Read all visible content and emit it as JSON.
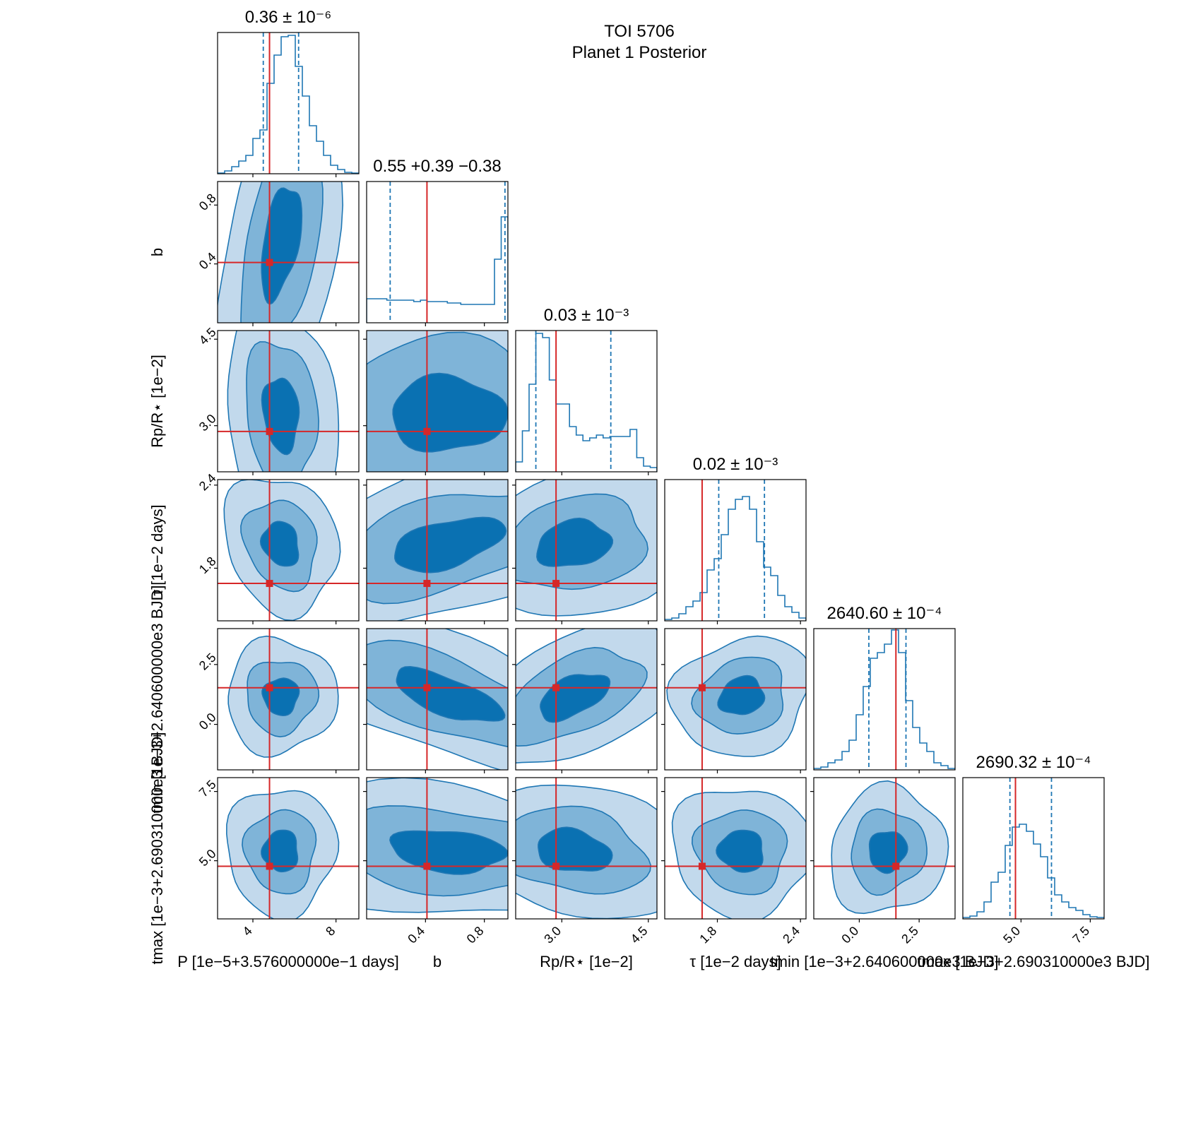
{
  "figure": {
    "title_line1": "TOI 5706",
    "title_line2": "Planet 1 Posterior"
  },
  "colors": {
    "fill_outer": "#c2d9ec",
    "fill_mid": "#7fb4d8",
    "fill_inner": "#0a71b2",
    "contour_line": "#1f77b4",
    "truth": "#d62728",
    "hist": "#1f77b4",
    "axes": "#000000"
  },
  "chart_data": {
    "type": "corner",
    "parameters": [
      {
        "key": "P",
        "title": "0.36 ± 10⁻⁶",
        "xlabel": "P [1e−5+3.576000000e−1  days]",
        "ylabel": "",
        "ticks": [
          "4",
          "8"
        ],
        "tick_values": [
          4,
          8
        ],
        "range": [
          2.3,
          9.1
        ],
        "truth": 4.8,
        "q_lo": 4.5,
        "q_hi": 6.2,
        "hist": [
          0.005,
          0.02,
          0.05,
          0.09,
          0.13,
          0.25,
          0.31,
          0.64,
          0.84,
          0.97,
          0.98,
          0.76,
          0.55,
          0.34,
          0.23,
          0.13,
          0.06,
          0.03,
          0.01,
          0.005
        ]
      },
      {
        "key": "b",
        "title": "0.55 +0.39 −0.38",
        "xlabel": "b",
        "ylabel": "b",
        "ticks": [
          "0.4",
          "0.8"
        ],
        "tick_values": [
          0.4,
          0.8
        ],
        "range": [
          0.0,
          0.96
        ],
        "truth": 0.41,
        "q_lo": 0.16,
        "q_hi": 0.94,
        "hist": [
          0.17,
          0.17,
          0.17,
          0.16,
          0.16,
          0.16,
          0.16,
          0.15,
          0.16,
          0.15,
          0.15,
          0.15,
          0.14,
          0.14,
          0.13,
          0.13,
          0.13,
          0.13,
          0.13,
          0.45,
          0.75
        ]
      },
      {
        "key": "Rp",
        "title": "0.03 ± 10⁻³",
        "xlabel": "Rp/R⋆ [1e−2]",
        "ylabel": "Rp/R⋆ [1e−2]",
        "ticks": [
          "3.0",
          "4.5"
        ],
        "tick_values": [
          3.0,
          4.5
        ],
        "range": [
          2.2,
          4.65
        ],
        "truth": 2.9,
        "q_lo": 2.55,
        "q_hi": 3.85,
        "hist": [
          0.07,
          0.29,
          0.62,
          0.98,
          0.95,
          0.65,
          0.48,
          0.48,
          0.32,
          0.26,
          0.22,
          0.24,
          0.26,
          0.24,
          0.25,
          0.25,
          0.25,
          0.3,
          0.1,
          0.04,
          0.03
        ]
      },
      {
        "key": "tau",
        "title": "0.02 ± 10⁻³",
        "xlabel": "τ [1e−2  days]",
        "ylabel": "τ [1e−2  days]",
        "ticks": [
          "1.8",
          "2.4"
        ],
        "tick_values": [
          1.8,
          2.4
        ],
        "range": [
          1.42,
          2.44
        ],
        "truth": 1.69,
        "q_lo": 1.81,
        "q_hi": 2.14,
        "hist": [
          0.01,
          0.02,
          0.05,
          0.1,
          0.14,
          0.2,
          0.36,
          0.44,
          0.61,
          0.79,
          0.86,
          0.88,
          0.79,
          0.56,
          0.38,
          0.32,
          0.18,
          0.1,
          0.06,
          0.02
        ]
      },
      {
        "key": "tmin",
        "title": "2640.60 ± 10⁻⁴",
        "xlabel": "tmin [1e−3+2.640600000e3  BJD]",
        "ylabel": "tmin [1e−3+2.640600000e3  BJD]",
        "ticks": [
          "0.0",
          "2.5"
        ],
        "tick_values": [
          0.0,
          2.5
        ],
        "range": [
          -1.9,
          4.0
        ],
        "truth": 1.53,
        "q_lo": 0.4,
        "q_hi": 1.95,
        "hist": [
          0.01,
          0.02,
          0.05,
          0.07,
          0.13,
          0.21,
          0.39,
          0.59,
          0.79,
          0.83,
          0.89,
          0.99,
          0.83,
          0.49,
          0.3,
          0.19,
          0.13,
          0.05,
          0.03,
          0.01
        ]
      },
      {
        "key": "tmax",
        "title": "2690.32 ± 10⁻⁴",
        "xlabel": "tmax [1e−3+2.690310000e3  BJD]",
        "ylabel": "tmax [1e−3+2.690310000e3  BJD]",
        "ticks": [
          "5.0",
          "7.5"
        ],
        "tick_values": [
          5.0,
          7.5
        ],
        "range": [
          2.9,
          8.0
        ],
        "truth": 4.8,
        "q_lo": 4.6,
        "q_hi": 6.1,
        "hist": [
          0.01,
          0.02,
          0.05,
          0.12,
          0.26,
          0.33,
          0.52,
          0.65,
          0.67,
          0.62,
          0.53,
          0.44,
          0.29,
          0.17,
          0.12,
          0.08,
          0.06,
          0.03,
          0.015,
          0.01
        ]
      }
    ]
  }
}
